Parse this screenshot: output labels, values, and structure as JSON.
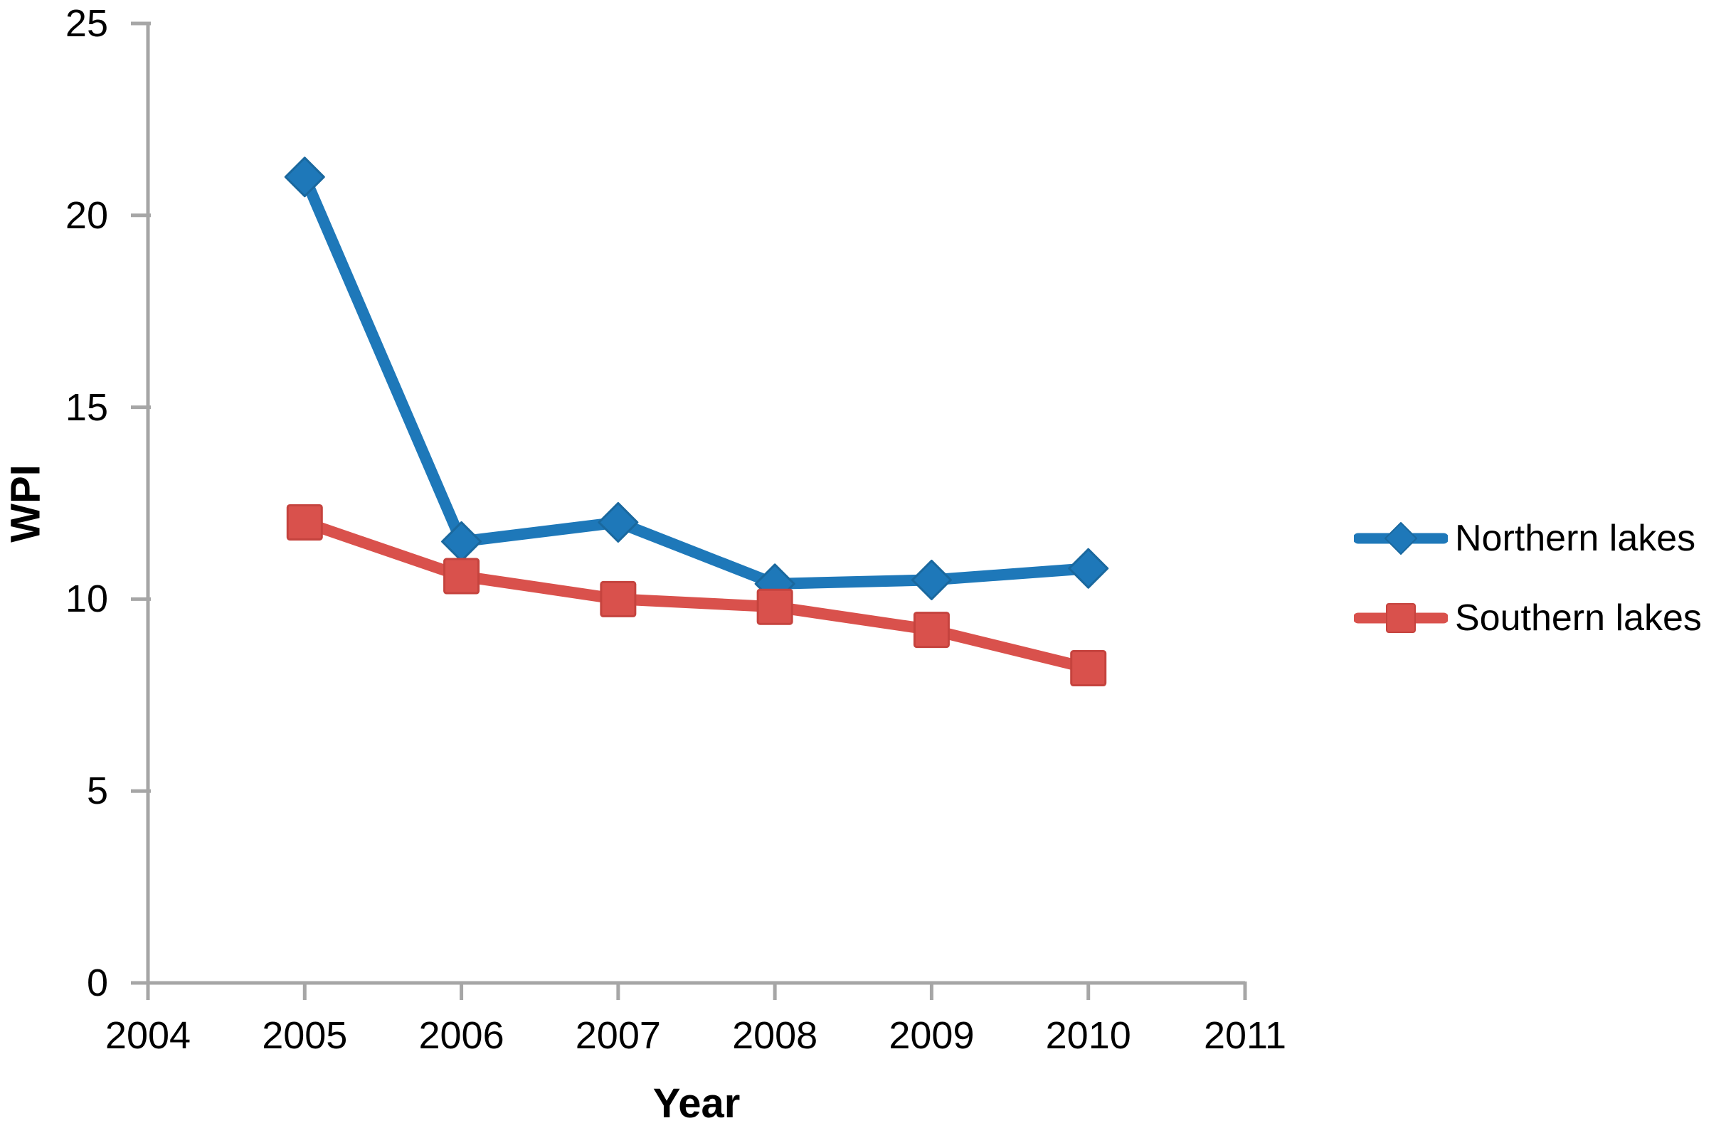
{
  "chart_data": {
    "type": "line",
    "title": "",
    "xlabel": "Year",
    "ylabel": "WPI",
    "categories": [
      "2004",
      "2005",
      "2006",
      "2007",
      "2008",
      "2009",
      "2010",
      "2011"
    ],
    "x": [
      2005,
      2006,
      2007,
      2008,
      2009,
      2010
    ],
    "series": [
      {
        "name": "Northern lakes",
        "marker": "diamond",
        "color": "#1E78B9",
        "marker_border": "#1A689E",
        "values": [
          21,
          11.5,
          12,
          10.4,
          10.5,
          10.8
        ]
      },
      {
        "name": "Southern lakes",
        "marker": "square",
        "color": "#D9514C",
        "marker_border": "#C5433E",
        "values": [
          12,
          10.6,
          10,
          9.8,
          9.2,
          8.2
        ]
      }
    ],
    "ylim": [
      0,
      25
    ],
    "yticks": [
      0,
      5,
      10,
      15,
      20,
      25
    ],
    "grid": false,
    "legend_position": "right",
    "axis_color": "#A6A6A6",
    "text_color": "#000000",
    "background": "#FFFFFF"
  }
}
